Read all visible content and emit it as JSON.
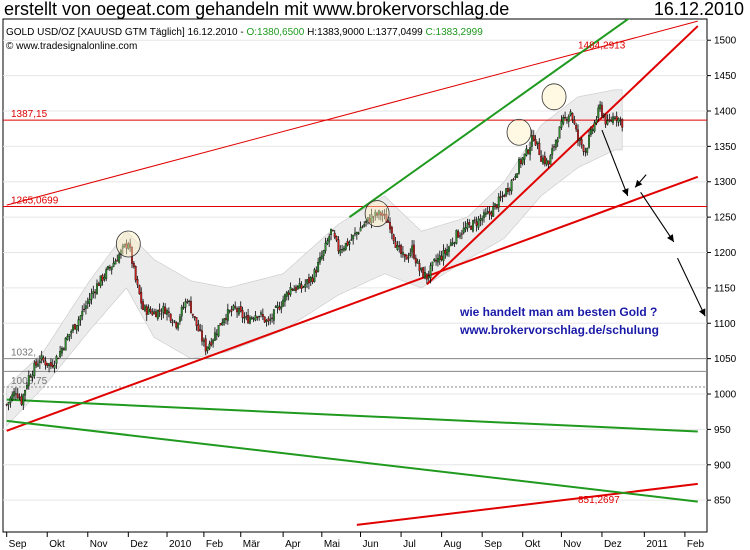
{
  "header": {
    "title": "erstellt von oegeat.com gehandeln mit www.brokervorschlag.de",
    "date": "16.12.2010"
  },
  "chart_data": {
    "type": "candlestick",
    "instrument_line": {
      "name": "GOLD USD/OZ [XAUUSD GTM",
      "interval": "Täglich]",
      "date": "16.12.2010",
      "open": "O:1380,6500",
      "high": "H:1383,9000",
      "low": "L:1377,0499",
      "close": "C:1383,2999"
    },
    "copyright": "© www.tradesignalonline.com",
    "y_axis": {
      "ylim": [
        805,
        1530
      ],
      "ticks": [
        850,
        900,
        950,
        1000,
        1050,
        1100,
        1150,
        1200,
        1250,
        1300,
        1350,
        1400,
        1450,
        1500
      ],
      "labels": [
        "850",
        "900",
        "950",
        "1000",
        "1050",
        "1100",
        "1150",
        "1200",
        "1250",
        "1300",
        "1350",
        "1400",
        "1450",
        "1500"
      ]
    },
    "x_axis": {
      "ticks": [
        {
          "label": "Sep",
          "i": 0
        },
        {
          "label": "Okt",
          "i": 22
        },
        {
          "label": "Nov",
          "i": 44
        },
        {
          "label": "Dez",
          "i": 66
        },
        {
          "label": "2010",
          "i": 87
        },
        {
          "label": "Feb",
          "i": 107
        },
        {
          "label": "Mär",
          "i": 127
        },
        {
          "label": "Apr",
          "i": 150
        },
        {
          "label": "Mai",
          "i": 171
        },
        {
          "label": "Jun",
          "i": 192
        },
        {
          "label": "Jul",
          "i": 214
        },
        {
          "label": "Aug",
          "i": 236
        },
        {
          "label": "Sep",
          "i": 258
        },
        {
          "label": "Okt",
          "i": 280
        },
        {
          "label": "Nov",
          "i": 301
        },
        {
          "label": "Dez",
          "i": 323
        },
        {
          "label": "2011",
          "i": 346
        },
        {
          "label": "Feb",
          "i": 368
        }
      ]
    },
    "price_anchors": [
      [
        0,
        985
      ],
      [
        5,
        1005
      ],
      [
        8,
        990
      ],
      [
        12,
        1025
      ],
      [
        18,
        1050
      ],
      [
        24,
        1040
      ],
      [
        28,
        1055
      ],
      [
        34,
        1085
      ],
      [
        40,
        1110
      ],
      [
        48,
        1150
      ],
      [
        55,
        1175
      ],
      [
        62,
        1200
      ],
      [
        66,
        1215
      ],
      [
        70,
        1160
      ],
      [
        74,
        1120
      ],
      [
        80,
        1115
      ],
      [
        86,
        1120
      ],
      [
        92,
        1100
      ],
      [
        98,
        1135
      ],
      [
        104,
        1090
      ],
      [
        108,
        1065
      ],
      [
        112,
        1080
      ],
      [
        118,
        1110
      ],
      [
        124,
        1120
      ],
      [
        130,
        1105
      ],
      [
        136,
        1115
      ],
      [
        142,
        1100
      ],
      [
        148,
        1125
      ],
      [
        154,
        1150
      ],
      [
        160,
        1150
      ],
      [
        166,
        1165
      ],
      [
        172,
        1200
      ],
      [
        176,
        1230
      ],
      [
        180,
        1205
      ],
      [
        186,
        1215
      ],
      [
        192,
        1235
      ],
      [
        198,
        1250
      ],
      [
        203,
        1255
      ],
      [
        208,
        1240
      ],
      [
        212,
        1205
      ],
      [
        216,
        1190
      ],
      [
        220,
        1205
      ],
      [
        224,
        1175
      ],
      [
        228,
        1165
      ],
      [
        232,
        1185
      ],
      [
        238,
        1200
      ],
      [
        244,
        1225
      ],
      [
        250,
        1235
      ],
      [
        256,
        1245
      ],
      [
        262,
        1255
      ],
      [
        268,
        1275
      ],
      [
        274,
        1300
      ],
      [
        278,
        1325
      ],
      [
        282,
        1340
      ],
      [
        286,
        1365
      ],
      [
        290,
        1335
      ],
      [
        294,
        1325
      ],
      [
        298,
        1360
      ],
      [
        302,
        1385
      ],
      [
        306,
        1400
      ],
      [
        310,
        1360
      ],
      [
        314,
        1345
      ],
      [
        318,
        1375
      ],
      [
        322,
        1405
      ],
      [
        326,
        1380
      ],
      [
        330,
        1395
      ],
      [
        334,
        1383
      ]
    ],
    "upper_hollow_anchors": [
      [
        0,
        1010
      ],
      [
        20,
        1060
      ],
      [
        45,
        1160
      ],
      [
        65,
        1230
      ],
      [
        80,
        1190
      ],
      [
        100,
        1160
      ],
      [
        120,
        1150
      ],
      [
        150,
        1170
      ],
      [
        180,
        1240
      ],
      [
        205,
        1280
      ],
      [
        225,
        1230
      ],
      [
        250,
        1250
      ],
      [
        270,
        1300
      ],
      [
        290,
        1380
      ],
      [
        310,
        1420
      ],
      [
        330,
        1430
      ]
    ],
    "lower_hollow_anchors": [
      [
        0,
        955
      ],
      [
        20,
        1010
      ],
      [
        45,
        1090
      ],
      [
        65,
        1150
      ],
      [
        80,
        1080
      ],
      [
        100,
        1050
      ],
      [
        120,
        1060
      ],
      [
        150,
        1090
      ],
      [
        180,
        1140
      ],
      [
        205,
        1170
      ],
      [
        225,
        1150
      ],
      [
        250,
        1190
      ],
      [
        270,
        1220
      ],
      [
        290,
        1280
      ],
      [
        310,
        1320
      ],
      [
        330,
        1345
      ]
    ],
    "horizontal_levels": [
      {
        "value": 1387.15,
        "label": "1387,15",
        "color": "#e00000"
      },
      {
        "value": 1265.0699,
        "label": "1265,0699",
        "color": "#e00000"
      },
      {
        "value": 1050,
        "label": "1032,",
        "color": "#888888"
      },
      {
        "value": 1032,
        "label": "",
        "color": "#888888"
      },
      {
        "value": 1010,
        "label": "1008,75",
        "color": "#888888",
        "dashed": true
      }
    ],
    "trendlines": [
      {
        "color": "#e00000",
        "width": 2,
        "p1": [
          0,
          948
        ],
        "p2": [
          375,
          1307
        ]
      },
      {
        "color": "#e00000",
        "width": 2,
        "p1": [
          228,
          1155
        ],
        "p2": [
          375,
          1520
        ]
      },
      {
        "color": "#e00000",
        "width": 1,
        "p1": [
          0,
          1267
        ],
        "p2": [
          375,
          1527
        ]
      },
      {
        "color": "#e00000",
        "width": 2,
        "p1": [
          190,
          815
        ],
        "p2": [
          375,
          873
        ]
      },
      {
        "color": "#1f9a1f",
        "width": 2,
        "p1": [
          186,
          1250
        ],
        "p2": [
          375,
          1600
        ]
      },
      {
        "color": "#1f9a1f",
        "width": 2,
        "p1": [
          0,
          992
        ],
        "p2": [
          375,
          947
        ]
      },
      {
        "color": "#1f9a1f",
        "width": 2,
        "p1": [
          0,
          962
        ],
        "p2": [
          375,
          848
        ]
      }
    ],
    "annotation_levels": [
      {
        "label": "1484,2913",
        "i": 310,
        "value": 1488
      },
      {
        "label": "851,2697",
        "i": 310,
        "value": 846
      }
    ],
    "highlight_circles": [
      {
        "i": 66,
        "value": 1212
      },
      {
        "i": 201,
        "value": 1255
      },
      {
        "i": 278,
        "value": 1370
      },
      {
        "i": 297,
        "value": 1420
      }
    ],
    "arrows": [
      {
        "from": [
          323,
          1373
        ],
        "to": [
          337,
          1280
        ]
      },
      {
        "from": [
          347,
          1310
        ],
        "to": [
          341,
          1292
        ]
      },
      {
        "from": [
          344,
          1285
        ],
        "to": [
          362,
          1215
        ]
      },
      {
        "from": [
          364,
          1192
        ],
        "to": [
          379,
          1110
        ]
      }
    ],
    "annotation_text": [
      "wie handelt man am besten Gold ?",
      "www.brokervorschlag.de/schulung"
    ]
  }
}
